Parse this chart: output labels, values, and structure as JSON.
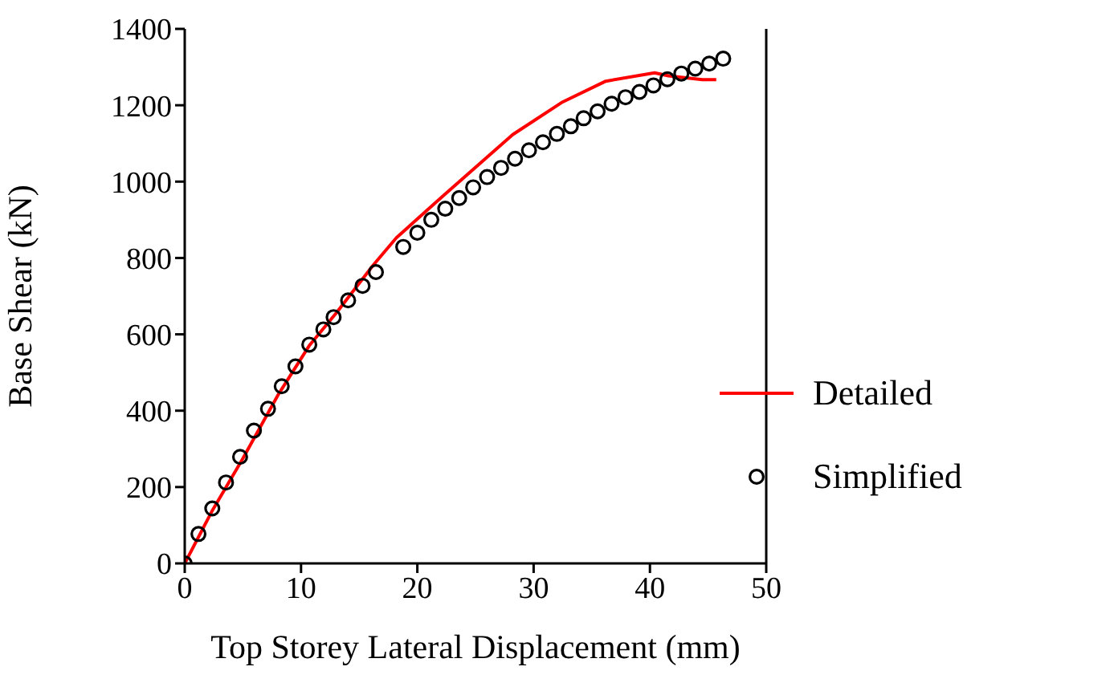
{
  "chart_data": {
    "type": "line",
    "xlabel": "Top Storey Lateral Displacement (mm)",
    "ylabel": "Base Shear (kN)",
    "xlim": [
      0,
      50
    ],
    "xticks": [
      0,
      10,
      20,
      30,
      40,
      50
    ],
    "ylim": [
      0,
      1400
    ],
    "yticks": [
      0,
      200,
      400,
      600,
      800,
      1000,
      1200,
      1400
    ],
    "grid": false,
    "legend": "bottom right",
    "series": [
      {
        "name": "Detailed",
        "color": "#ff0000",
        "marker": "none",
        "line_style": "solid",
        "x": [
          0,
          2.4,
          5,
          8,
          10.7,
          13,
          16.2,
          18.2,
          22.3,
          28.2,
          32.4,
          36.2,
          40.4,
          41.6,
          44.5,
          45.7
        ],
        "values": [
          0,
          140,
          275,
          440,
          570,
          655,
          781,
          853,
          965,
          1123,
          1207,
          1263,
          1285,
          1277,
          1267,
          1267
        ]
      },
      {
        "name": "Simplified",
        "type": "scatter",
        "color": "#000000",
        "marker": "circle",
        "x": [
          0,
          1.18,
          2.37,
          3.55,
          4.76,
          5.95,
          7.16,
          8.34,
          9.52,
          10.71,
          11.92,
          12.8,
          14.05,
          15.29,
          16.44,
          18.79,
          20.0,
          21.2,
          22.4,
          23.6,
          24.8,
          26.0,
          27.2,
          28.4,
          29.6,
          30.8,
          32.0,
          33.2,
          34.3,
          35.5,
          36.7,
          37.9,
          39.1,
          40.3,
          41.5,
          42.7,
          43.9,
          45.1,
          46.3
        ],
        "values": [
          0,
          77,
          144,
          212,
          279,
          348,
          405,
          464,
          516,
          573,
          613,
          645,
          689,
          727,
          763,
          829,
          866,
          900,
          929,
          957,
          985,
          1012,
          1036,
          1060,
          1082,
          1103,
          1125,
          1145,
          1166,
          1184,
          1204,
          1221,
          1235,
          1252,
          1268,
          1283,
          1296,
          1309,
          1322
        ]
      }
    ]
  }
}
